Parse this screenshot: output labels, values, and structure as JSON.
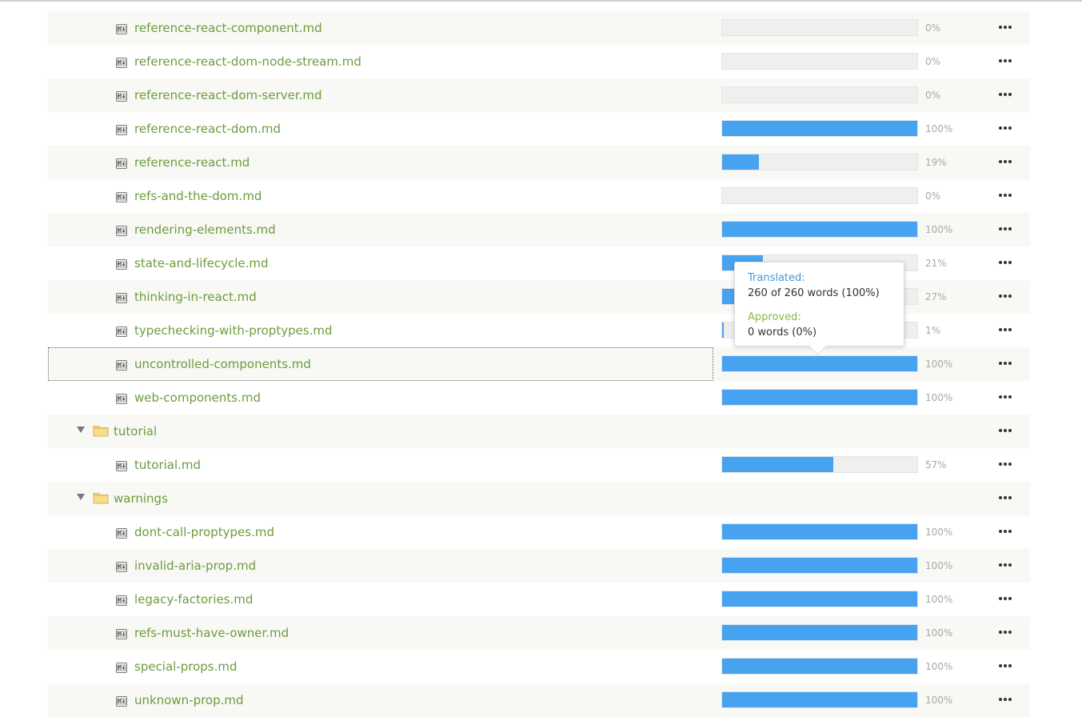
{
  "rows": [
    {
      "kind": "file",
      "name": "reference-react-component.md",
      "progress": 0,
      "pct": "0%"
    },
    {
      "kind": "file",
      "name": "reference-react-dom-node-stream.md",
      "progress": 0,
      "pct": "0%"
    },
    {
      "kind": "file",
      "name": "reference-react-dom-server.md",
      "progress": 0,
      "pct": "0%"
    },
    {
      "kind": "file",
      "name": "reference-react-dom.md",
      "progress": 100,
      "pct": "100%"
    },
    {
      "kind": "file",
      "name": "reference-react.md",
      "progress": 19,
      "pct": "19%"
    },
    {
      "kind": "file",
      "name": "refs-and-the-dom.md",
      "progress": 0,
      "pct": "0%"
    },
    {
      "kind": "file",
      "name": "rendering-elements.md",
      "progress": 100,
      "pct": "100%"
    },
    {
      "kind": "file",
      "name": "state-and-lifecycle.md",
      "progress": 21,
      "pct": "21%"
    },
    {
      "kind": "file",
      "name": "thinking-in-react.md",
      "progress": 27,
      "pct": "27%"
    },
    {
      "kind": "file",
      "name": "typechecking-with-proptypes.md",
      "progress": 1,
      "pct": "1%"
    },
    {
      "kind": "file",
      "name": "uncontrolled-components.md",
      "progress": 100,
      "pct": "100%",
      "focused": true
    },
    {
      "kind": "file",
      "name": "web-components.md",
      "progress": 100,
      "pct": "100%"
    },
    {
      "kind": "folder",
      "name": "tutorial"
    },
    {
      "kind": "file",
      "name": "tutorial.md",
      "progress": 57,
      "pct": "57%"
    },
    {
      "kind": "folder",
      "name": "warnings"
    },
    {
      "kind": "file",
      "name": "dont-call-proptypes.md",
      "progress": 100,
      "pct": "100%"
    },
    {
      "kind": "file",
      "name": "invalid-aria-prop.md",
      "progress": 100,
      "pct": "100%"
    },
    {
      "kind": "file",
      "name": "legacy-factories.md",
      "progress": 100,
      "pct": "100%"
    },
    {
      "kind": "file",
      "name": "refs-must-have-owner.md",
      "progress": 100,
      "pct": "100%"
    },
    {
      "kind": "file",
      "name": "special-props.md",
      "progress": 100,
      "pct": "100%"
    },
    {
      "kind": "file",
      "name": "unknown-prop.md",
      "progress": 100,
      "pct": "100%"
    }
  ],
  "tooltip": {
    "translated_label": "Translated:",
    "translated_value": "260 of 260 words (100%)",
    "approved_label": "Approved:",
    "approved_value": "0 words (0%)"
  },
  "icons": {
    "file": "markdown-file-icon",
    "folder": "folder-icon",
    "caret": "caret-down-icon",
    "more": "more-options-icon"
  },
  "colors": {
    "link": "#6e9c3d",
    "progress_fill": "#47a3f0",
    "progress_track": "#efefef",
    "translated": "#3f98de",
    "approved": "#8cb84a",
    "folder": "#f0d27a"
  }
}
